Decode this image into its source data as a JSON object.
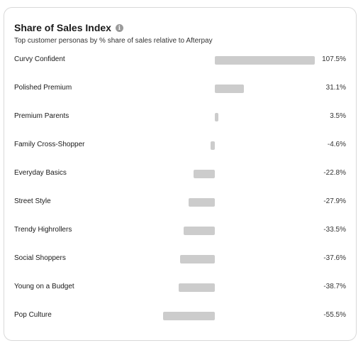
{
  "card": {
    "title": "Share of Sales Index",
    "subtitle": "Top customer personas by % share of sales relative to Afterpay",
    "info_icon": "info-icon"
  },
  "chart_data": {
    "type": "bar",
    "orientation": "horizontal",
    "title": "Share of Sales Index",
    "subtitle": "Top customer personas by % share of sales relative to Afterpay",
    "categories": [
      "Curvy Confident",
      "Polished Premium",
      "Premium Parents",
      "Family Cross-Shopper",
      "Everyday Basics",
      "Street Style",
      "Trendy Highrollers",
      "Social Shoppers",
      "Young on a Budget",
      "Pop Culture"
    ],
    "values": [
      107.5,
      31.1,
      3.5,
      -4.6,
      -22.8,
      -27.9,
      -33.5,
      -37.6,
      -38.7,
      -55.5
    ],
    "value_labels": [
      "107.5%",
      "31.1%",
      "3.5%",
      "-4.6%",
      "-22.8%",
      "-27.9%",
      "-33.5%",
      "-37.6%",
      "-38.7%",
      "-55.5%"
    ],
    "bar_color": "#cccccc",
    "grid": false,
    "legend": "none"
  }
}
